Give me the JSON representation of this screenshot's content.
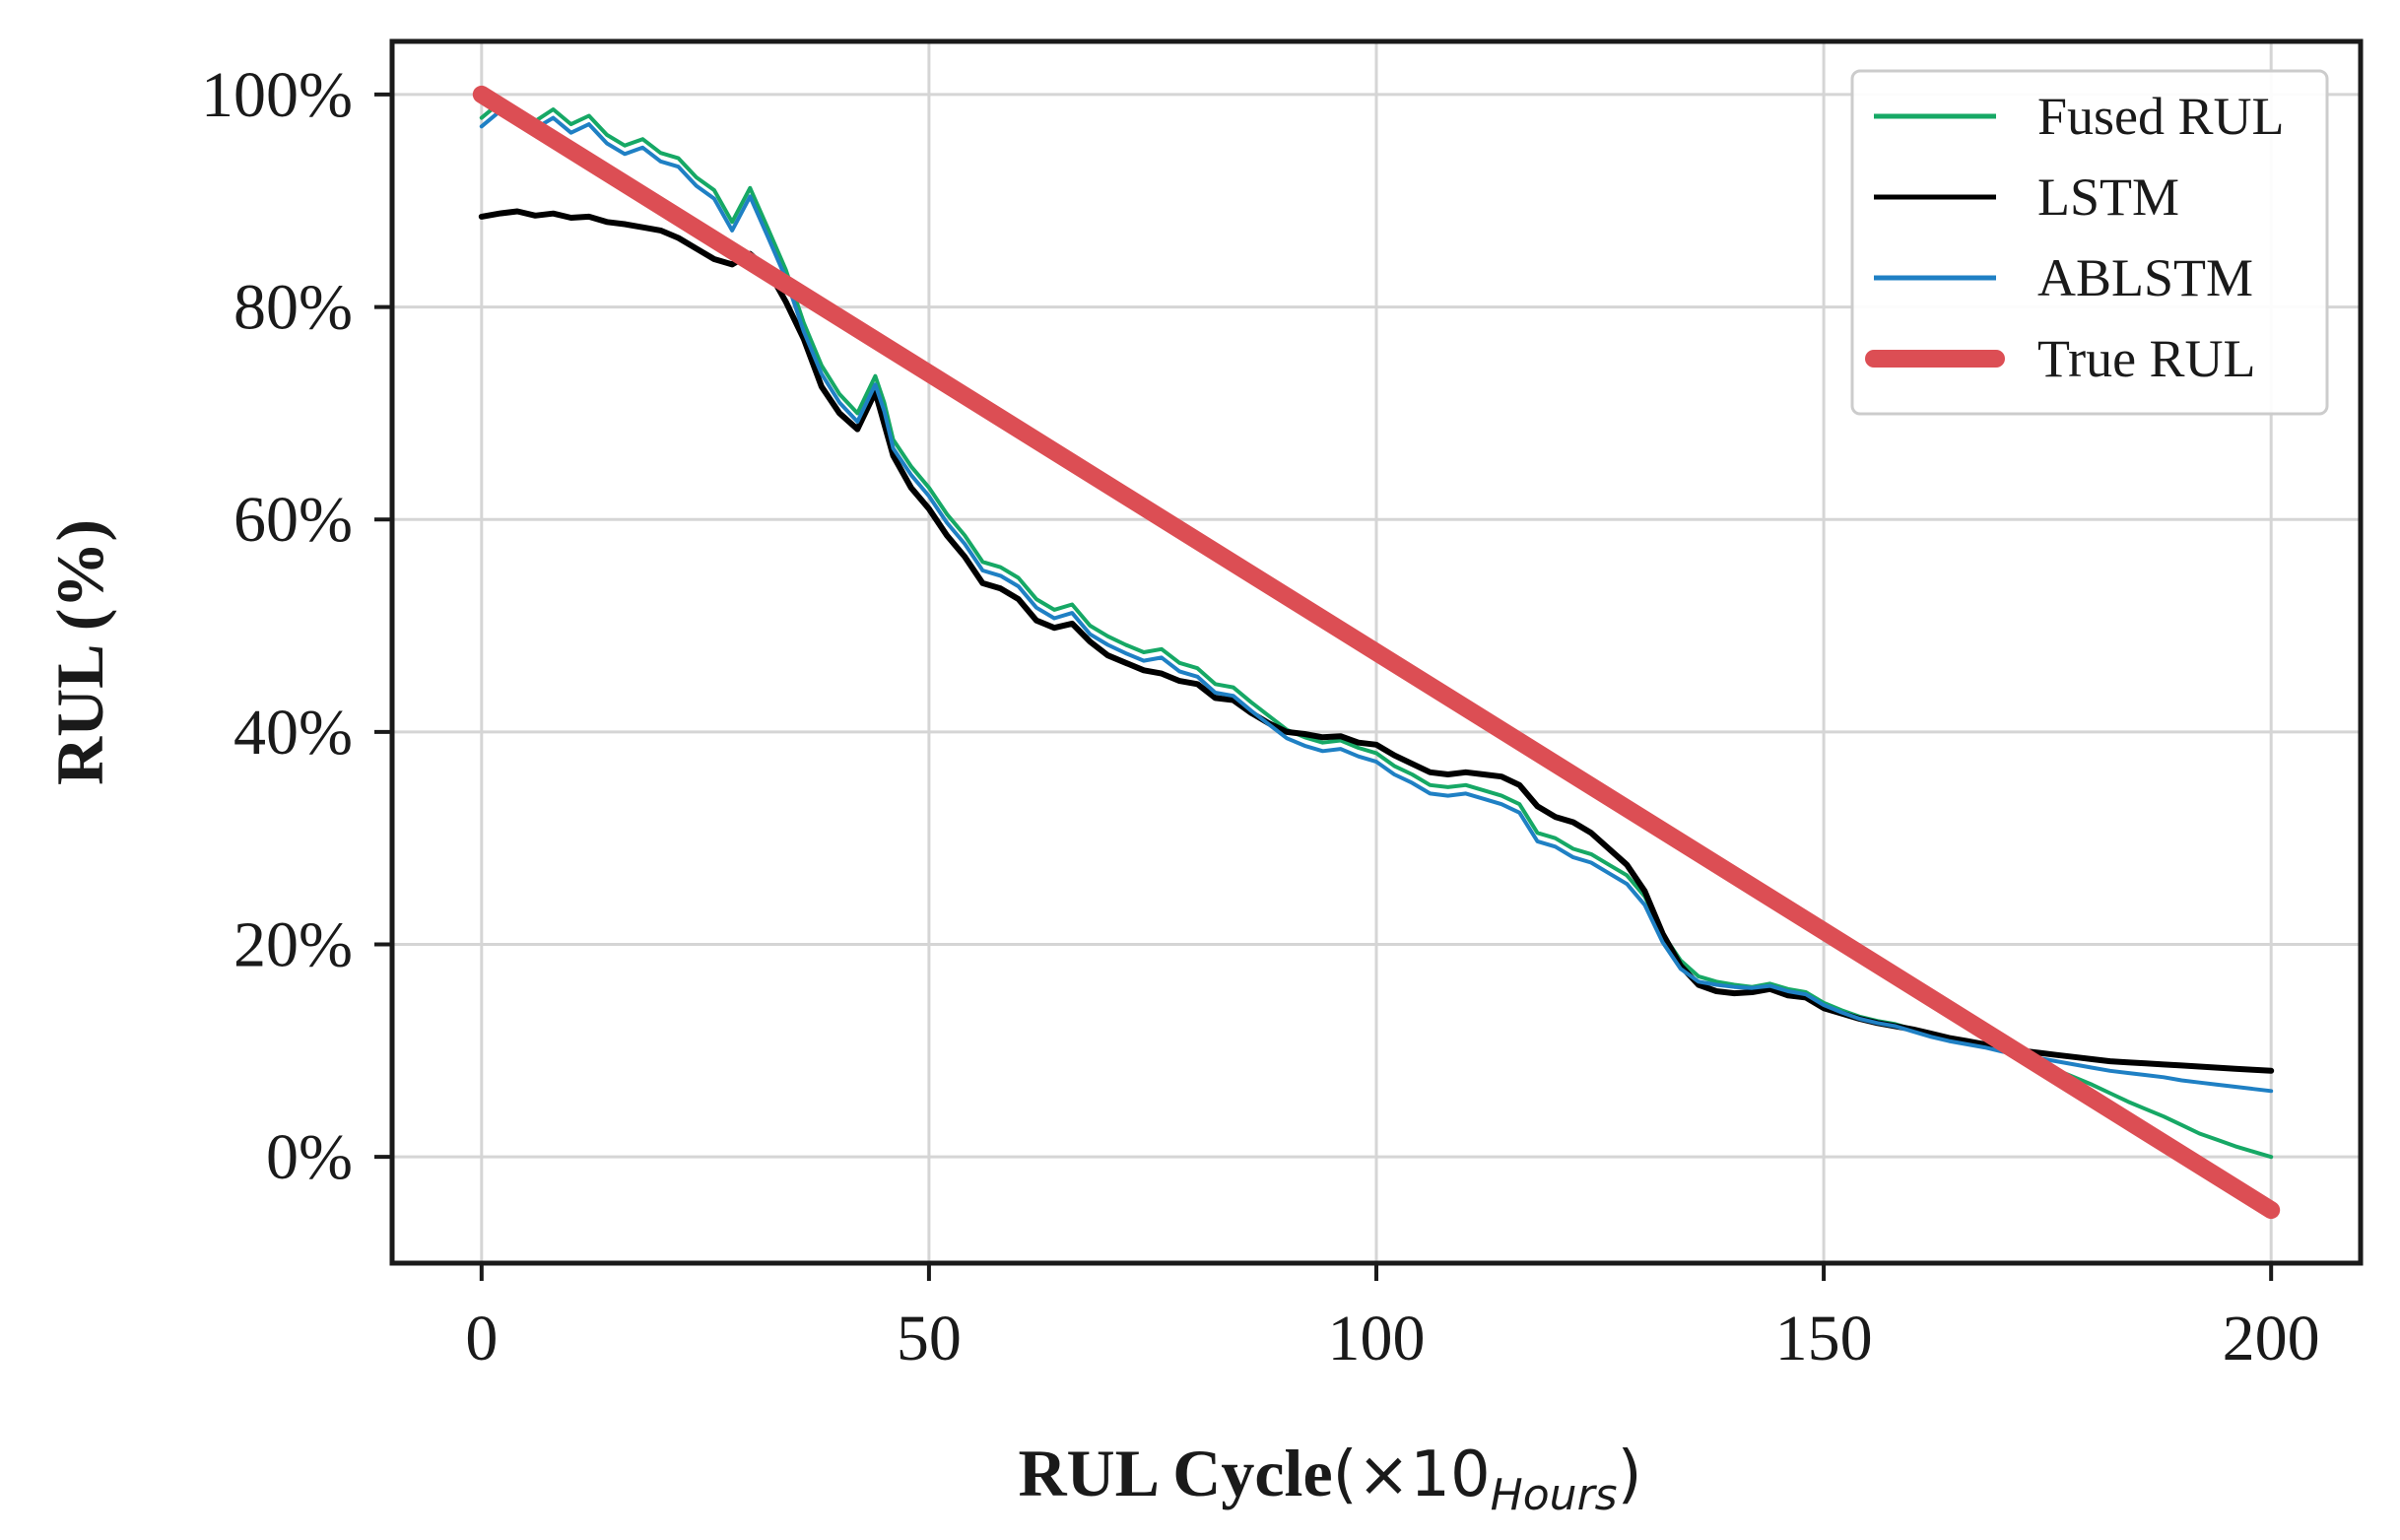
{
  "chart_data": {
    "type": "line",
    "title": "",
    "xlabel": {
      "main": "RUL Cycle",
      "paren_open": "(",
      "times_ten": "×10",
      "subscript": "Hours",
      "paren_close": ")"
    },
    "ylabel": "RUL (%)",
    "xlim": [
      -10,
      210
    ],
    "ylim": [
      -10,
      105
    ],
    "x_ticks": [
      0,
      50,
      100,
      150,
      200
    ],
    "x_tick_labels": [
      "0",
      "50",
      "100",
      "150",
      "200"
    ],
    "y_ticks": [
      0,
      20,
      40,
      60,
      80,
      100
    ],
    "y_tick_labels": [
      "0%",
      "20%",
      "40%",
      "60%",
      "80%",
      "100%"
    ],
    "grid": true,
    "legend_position": "top-right",
    "legend": [
      "Fused RUL",
      "LSTM",
      "ABLSTM",
      "True RUL"
    ],
    "colors": {
      "fused": "#16a865",
      "lstm": "#000000",
      "ablstm": "#1f80c4",
      "true": "#dc4e54",
      "grid": "#d5d5d5",
      "frame": "#1a1a1a"
    },
    "series": [
      {
        "name": "Fused RUL",
        "key": "fused",
        "x": [
          0,
          2,
          4,
          6,
          8,
          10,
          12,
          14,
          16,
          18,
          20,
          22,
          24,
          26,
          28,
          30,
          32,
          34,
          36,
          38,
          40,
          42,
          44,
          45,
          46,
          48,
          50,
          52,
          54,
          56,
          58,
          60,
          62,
          64,
          66,
          68,
          70,
          72,
          74,
          76,
          78,
          80,
          82,
          84,
          86,
          88,
          90,
          92,
          94,
          96,
          98,
          100,
          102,
          104,
          106,
          108,
          110,
          112,
          114,
          116,
          118,
          120,
          122,
          124,
          126,
          128,
          130,
          132,
          134,
          136,
          138,
          140,
          142,
          144,
          146,
          148,
          150,
          152,
          154,
          156,
          158,
          160,
          162,
          164,
          166,
          168,
          170,
          172,
          174,
          176,
          178,
          180,
          182,
          184,
          186,
          188,
          190,
          192,
          194,
          196,
          198,
          200
        ],
        "y": [
          97.8,
          99.2,
          98.0,
          97.5,
          98.6,
          97.2,
          98.0,
          96.2,
          95.2,
          95.8,
          94.5,
          94.0,
          92.2,
          91.0,
          88.0,
          91.2,
          87.4,
          83.5,
          78.5,
          74.5,
          71.8,
          70.0,
          73.5,
          71.0,
          67.5,
          65.0,
          63.0,
          60.5,
          58.5,
          56.0,
          55.5,
          54.5,
          52.5,
          51.5,
          52.0,
          50.0,
          49.0,
          48.2,
          47.5,
          47.8,
          46.5,
          46.0,
          44.5,
          44.2,
          42.8,
          41.5,
          40.2,
          39.5,
          39.0,
          39.2,
          38.5,
          38.0,
          36.8,
          36.0,
          35.0,
          34.8,
          35.0,
          34.5,
          34.0,
          33.2,
          30.5,
          30.0,
          29.0,
          28.5,
          27.5,
          26.5,
          24.5,
          21.0,
          18.5,
          17.0,
          16.5,
          16.2,
          16.0,
          16.3,
          15.8,
          15.5,
          14.5,
          13.8,
          13.2,
          12.8,
          12.5,
          12.0,
          11.5,
          11.0,
          10.8,
          10.5,
          10.0,
          9.5,
          8.8,
          8.2,
          7.5,
          6.8,
          6.0,
          5.2,
          4.5,
          3.8,
          3.0,
          2.2,
          1.6,
          1.0,
          0.5,
          0.0
        ]
      },
      {
        "name": "LSTM",
        "key": "lstm",
        "x": [
          0,
          2,
          4,
          6,
          8,
          10,
          12,
          14,
          16,
          18,
          20,
          22,
          24,
          26,
          28,
          30,
          32,
          34,
          36,
          38,
          40,
          42,
          44,
          45,
          46,
          48,
          50,
          52,
          54,
          56,
          58,
          60,
          62,
          64,
          66,
          68,
          70,
          72,
          74,
          76,
          78,
          80,
          82,
          84,
          86,
          88,
          90,
          92,
          94,
          96,
          98,
          100,
          102,
          104,
          106,
          108,
          110,
          112,
          114,
          116,
          118,
          120,
          122,
          124,
          126,
          128,
          130,
          132,
          134,
          136,
          138,
          140,
          142,
          144,
          146,
          148,
          150,
          152,
          154,
          156,
          158,
          160,
          162,
          164,
          166,
          168,
          170,
          172,
          174,
          176,
          178,
          180,
          182,
          184,
          186,
          188,
          190,
          192,
          194,
          196,
          198,
          200
        ],
        "y": [
          88.5,
          88.8,
          89.0,
          88.6,
          88.8,
          88.4,
          88.5,
          88.0,
          87.8,
          87.5,
          87.2,
          86.5,
          85.5,
          84.5,
          84.0,
          85.0,
          83.5,
          80.5,
          77.0,
          72.5,
          70.0,
          68.5,
          72.0,
          69.0,
          66.0,
          63.0,
          61.0,
          58.5,
          56.5,
          54.0,
          53.5,
          52.5,
          50.5,
          49.8,
          50.2,
          48.5,
          47.2,
          46.5,
          45.8,
          45.5,
          44.8,
          44.5,
          43.2,
          43.0,
          41.8,
          40.8,
          40.0,
          39.8,
          39.5,
          39.6,
          39.0,
          38.8,
          37.8,
          37.0,
          36.2,
          36.0,
          36.2,
          36.0,
          35.8,
          35.0,
          33.0,
          32.0,
          31.5,
          30.5,
          29.0,
          27.5,
          25.0,
          21.0,
          18.0,
          16.2,
          15.6,
          15.4,
          15.5,
          15.8,
          15.2,
          15.0,
          14.0,
          13.5,
          13.0,
          12.6,
          12.3,
          12.0,
          11.6,
          11.2,
          10.9,
          10.6,
          10.3,
          10.0,
          9.8,
          9.6,
          9.4,
          9.2,
          9.0,
          8.9,
          8.8,
          8.7,
          8.6,
          8.5,
          8.4,
          8.3,
          8.2,
          8.1
        ]
      },
      {
        "name": "ABLSTM",
        "key": "ablstm",
        "x": [
          0,
          2,
          4,
          6,
          8,
          10,
          12,
          14,
          16,
          18,
          20,
          22,
          24,
          26,
          28,
          30,
          32,
          34,
          36,
          38,
          40,
          42,
          44,
          45,
          46,
          48,
          50,
          52,
          54,
          56,
          58,
          60,
          62,
          64,
          66,
          68,
          70,
          72,
          74,
          76,
          78,
          80,
          82,
          84,
          86,
          88,
          90,
          92,
          94,
          96,
          98,
          100,
          102,
          104,
          106,
          108,
          110,
          112,
          114,
          116,
          118,
          120,
          122,
          124,
          126,
          128,
          130,
          132,
          134,
          136,
          138,
          140,
          142,
          144,
          146,
          148,
          150,
          152,
          154,
          156,
          158,
          160,
          162,
          164,
          166,
          168,
          170,
          172,
          174,
          176,
          178,
          180,
          182,
          184,
          186,
          188,
          190,
          192,
          194,
          196,
          198,
          200
        ],
        "y": [
          97.0,
          98.4,
          97.2,
          96.8,
          97.8,
          96.4,
          97.2,
          95.4,
          94.4,
          95.0,
          93.7,
          93.2,
          91.4,
          90.2,
          87.2,
          90.4,
          86.6,
          82.7,
          77.7,
          73.7,
          71.0,
          69.2,
          72.7,
          70.2,
          66.7,
          64.2,
          62.2,
          59.7,
          57.7,
          55.2,
          54.7,
          53.7,
          51.7,
          50.7,
          51.2,
          49.2,
          48.2,
          47.4,
          46.7,
          47.0,
          45.7,
          45.2,
          43.7,
          43.4,
          42.0,
          40.7,
          39.4,
          38.7,
          38.2,
          38.4,
          37.7,
          37.2,
          36.0,
          35.2,
          34.2,
          34.0,
          34.2,
          33.7,
          33.2,
          32.4,
          29.7,
          29.2,
          28.2,
          27.7,
          26.7,
          25.7,
          23.7,
          20.2,
          17.7,
          16.5,
          16.2,
          16.0,
          15.9,
          16.1,
          15.6,
          15.3,
          14.3,
          13.6,
          13.0,
          12.6,
          12.3,
          11.8,
          11.3,
          10.9,
          10.6,
          10.3,
          9.9,
          9.6,
          9.3,
          9.0,
          8.7,
          8.4,
          8.1,
          7.9,
          7.7,
          7.5,
          7.2,
          7.0,
          6.8,
          6.6,
          6.4,
          6.2
        ]
      },
      {
        "name": "True RUL",
        "key": "true",
        "x": [
          0,
          200
        ],
        "y": [
          100,
          -5
        ]
      }
    ]
  }
}
